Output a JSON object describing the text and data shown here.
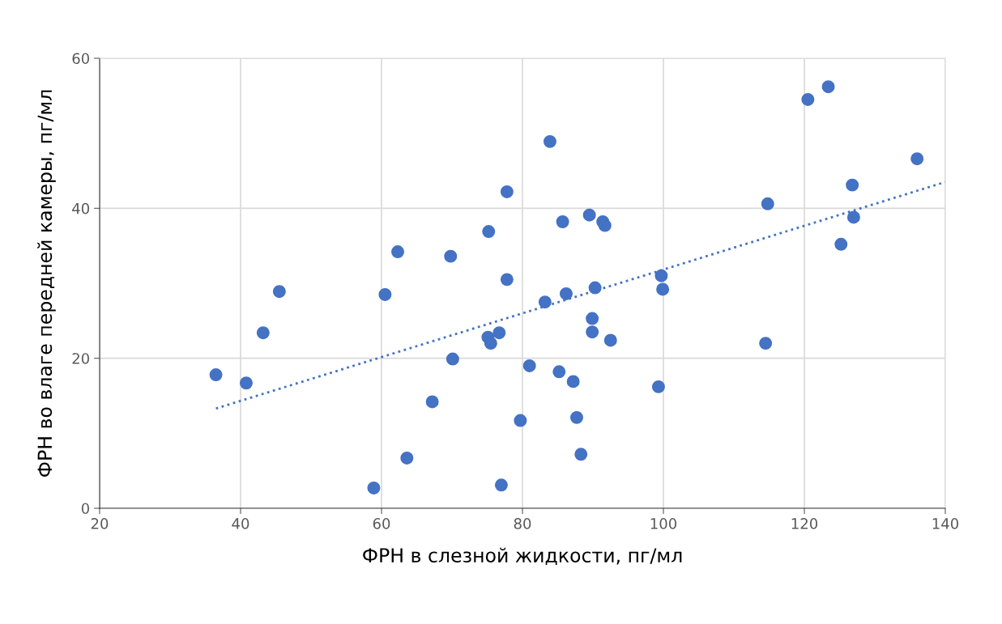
{
  "chart_data": {
    "type": "scatter",
    "xlabel": "ФРН в слезной жидкости, пг/мл",
    "ylabel": "ФРН во влаге передней камеры, пг/мл",
    "xlim": [
      20,
      140
    ],
    "xticks": [
      20,
      40,
      60,
      80,
      100,
      120,
      140
    ],
    "ylim": [
      0,
      60
    ],
    "yticks": [
      0,
      20,
      40,
      60
    ],
    "grid": true,
    "marker": "circle",
    "series": [
      {
        "color": "#4472c4",
        "x": [
          36.5,
          40.8,
          43.2,
          45.5,
          58.9,
          60.5,
          62.3,
          63.6,
          67.2,
          69.8,
          70.1,
          75.2,
          75.1,
          75.5,
          76.7,
          77.0,
          77.8,
          77.8,
          79.7,
          81.0,
          83.2,
          83.9,
          85.2,
          85.7,
          86.2,
          87.2,
          87.7,
          88.3,
          89.5,
          89.9,
          89.9,
          90.3,
          91.4,
          91.7,
          92.5,
          99.3,
          99.7,
          99.9,
          114.5,
          114.8,
          120.5,
          123.4,
          125.2,
          126.8,
          127.0,
          136.0
        ],
        "values": [
          17.8,
          16.7,
          23.4,
          28.9,
          2.7,
          28.5,
          34.2,
          6.7,
          14.2,
          33.6,
          19.9,
          36.9,
          22.8,
          22.0,
          23.4,
          3.1,
          42.2,
          30.5,
          11.7,
          19.0,
          27.5,
          48.9,
          18.2,
          38.2,
          28.6,
          16.9,
          12.1,
          7.2,
          39.1,
          25.3,
          23.5,
          29.4,
          38.2,
          37.7,
          22.4,
          16.2,
          31.0,
          29.2,
          22.0,
          40.6,
          54.5,
          56.2,
          35.2,
          43.1,
          38.8,
          46.6
        ]
      },
      {
        "type": "line",
        "color": "#4472c4",
        "line_style": "dotted",
        "marker": "none",
        "x": [
          36.5,
          140
        ],
        "values": [
          13.3,
          43.5
        ]
      }
    ]
  }
}
